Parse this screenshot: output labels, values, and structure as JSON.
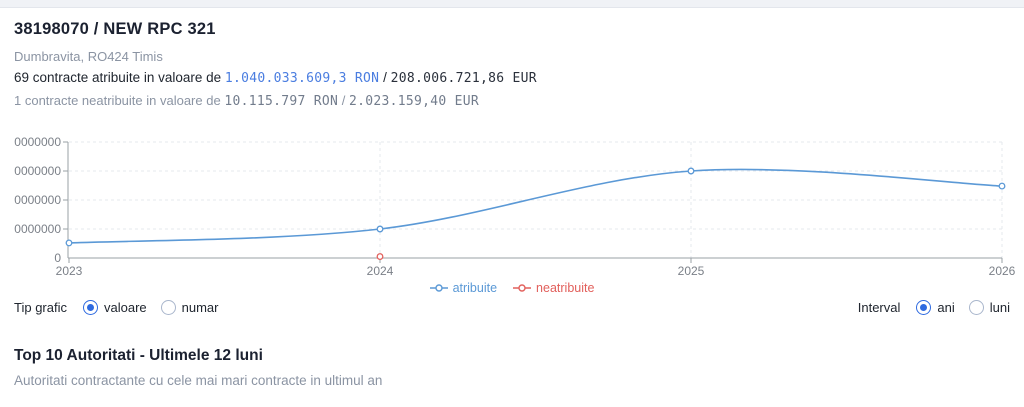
{
  "header": {
    "title": "38198070 / NEW RPC 321",
    "location": "Dumbravita, RO424 Timis",
    "awarded": {
      "prefix": "69 contracte atribuite in valoare de",
      "ron_value": "1.040.033.609,3 RON",
      "separator": "/",
      "eur_value": "208.006.721,86 EUR"
    },
    "unawarded": {
      "prefix": "1 contracte neatribuite in valoare de",
      "ron_value": "10.115.797 RON",
      "separator": "/",
      "eur_value": "2.023.159,40 EUR"
    }
  },
  "chart_data": {
    "type": "line",
    "x": [
      "2023",
      "2024",
      "2025",
      "2026"
    ],
    "y_tick_labels_bottom_to_top": [
      "0",
      "0000000",
      "0000000",
      "0000000",
      "0000000"
    ],
    "ylim_grid_units": [
      0,
      4
    ],
    "series": [
      {
        "name": "atribuite",
        "color": "#5b99d6",
        "values_grid_units": [
          0.52,
          1,
          3,
          2.48
        ]
      },
      {
        "name": "neatribuite",
        "color": "#e2605c",
        "values_grid_units": [
          null,
          0.05,
          null,
          null
        ]
      }
    ],
    "grid": "dashed",
    "legend_position": "bottom-center"
  },
  "controls": {
    "tip_grafic": {
      "label": "Tip grafic",
      "options": [
        {
          "label": "valoare",
          "selected": true
        },
        {
          "label": "numar",
          "selected": false
        }
      ]
    },
    "interval": {
      "label": "Interval",
      "options": [
        {
          "label": "ani",
          "selected": true
        },
        {
          "label": "luni",
          "selected": false
        }
      ]
    }
  },
  "section": {
    "title": "Top 10 Autoritati - Ultimele 12 luni",
    "subtitle": "Autoritati contractante cu cele mai mari contracte in ultimul an"
  },
  "colors": {
    "accent_radio_blue": "#2e6ae0",
    "value_link_blue": "#4a7de0",
    "series_awarded_blue": "#5b99d6",
    "series_unawarded_red": "#e2605c",
    "muted_text_gray": "#8b94a3",
    "axis_gray": "#9aa0a6"
  }
}
